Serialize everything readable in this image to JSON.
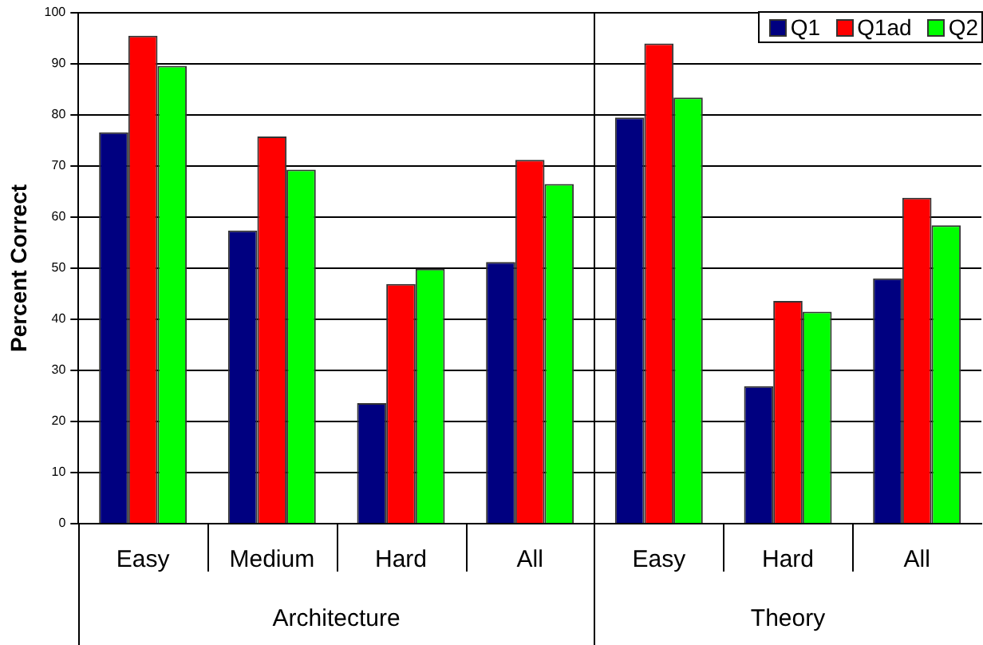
{
  "chart_data": {
    "type": "bar",
    "ylabel": "Percent Correct",
    "categories": [
      "Easy",
      "Medium",
      "Hard",
      "All",
      "Easy",
      "Hard",
      "All"
    ],
    "series": [
      {
        "name": "Q1",
        "color": "#000080",
        "values": [
          76.6,
          57.4,
          23.6,
          51.2,
          79.5,
          26.9,
          48.0
        ]
      },
      {
        "name": "Q1ad",
        "color": "#ff0000",
        "values": [
          95.5,
          75.8,
          46.9,
          71.2,
          94.0,
          43.6,
          63.8
        ]
      },
      {
        "name": "Q2",
        "color": "#00ff00",
        "values": [
          89.6,
          69.3,
          49.9,
          66.5,
          83.4,
          41.5,
          58.4
        ]
      }
    ],
    "ylim": [
      0,
      100
    ],
    "yticks": [
      0,
      10,
      20,
      30,
      40,
      50,
      60,
      70,
      80,
      90,
      100
    ],
    "grid": "y",
    "legend": "top right",
    "annotations": [
      "Architecture",
      "Theory"
    ]
  }
}
